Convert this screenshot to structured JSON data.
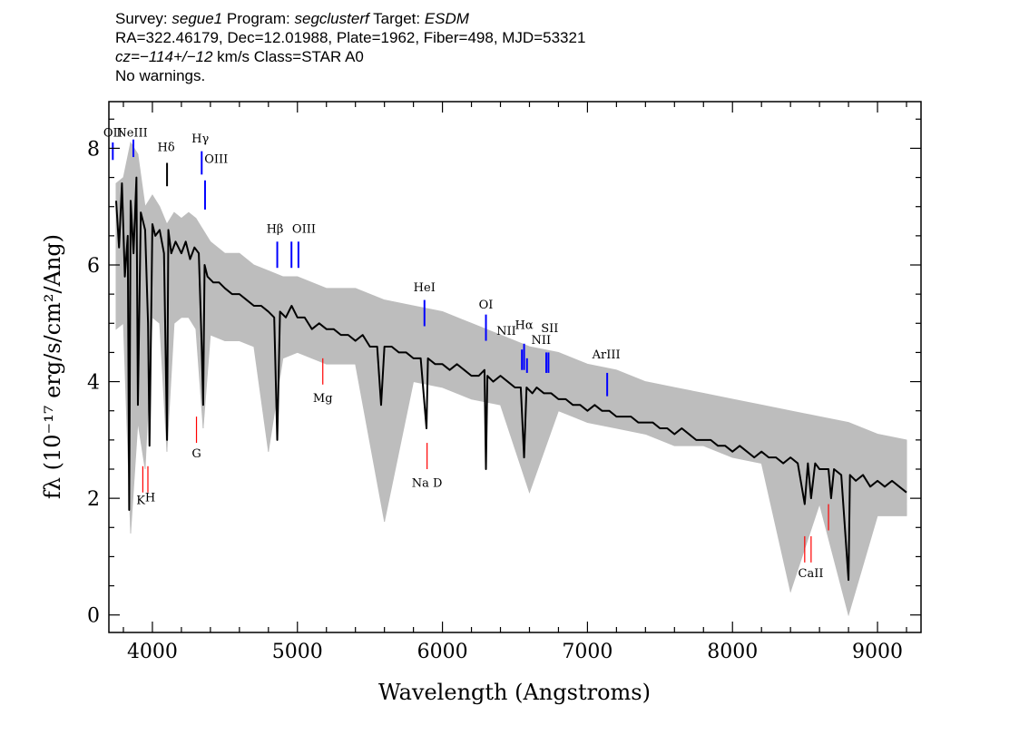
{
  "header": {
    "line1": {
      "survey_label": "Survey: ",
      "survey": "segue1",
      "program_label": " Program: ",
      "program": "segclusterf",
      "target_label": " Target: ",
      "target": "ESDM"
    },
    "line2": "RA=322.46179, Dec=12.01988, Plate=1962, Fiber=498, MJD=53321",
    "line3": {
      "cz": "cz=−114+/−12",
      "rest": " km/s Class=STAR A0"
    },
    "line4": "No warnings."
  },
  "chart_data": {
    "type": "line",
    "title": "",
    "xlabel": "Wavelength (Angstroms)",
    "ylabel": "fλ (10⁻¹⁷ erg/s/cm²/Ang)",
    "xlim": [
      3700,
      9300
    ],
    "ylim": [
      -0.3,
      8.8
    ],
    "x_ticks": [
      4000,
      5000,
      6000,
      7000,
      8000,
      9000
    ],
    "y_ticks": [
      0,
      2,
      4,
      6,
      8
    ],
    "x_minor_step": 200,
    "y_minor_step": 0.5,
    "grid": false,
    "series": [
      {
        "role": "error-band",
        "color": "#bdbdbd",
        "x": [
          3750,
          3800,
          3850,
          3900,
          3950,
          4000,
          4050,
          4100,
          4150,
          4200,
          4250,
          4300,
          4350,
          4400,
          4500,
          4600,
          4700,
          4800,
          4900,
          5000,
          5200,
          5400,
          5600,
          5800,
          6000,
          6200,
          6400,
          6600,
          6800,
          7000,
          7200,
          7400,
          7600,
          7800,
          8000,
          8200,
          8400,
          8600,
          8800,
          9000,
          9200
        ],
        "upper": [
          7.4,
          7.5,
          8.1,
          7.9,
          7.0,
          7.2,
          7.0,
          6.7,
          6.9,
          6.8,
          6.9,
          6.8,
          6.6,
          6.4,
          6.2,
          6.2,
          6.0,
          5.9,
          5.8,
          5.8,
          5.6,
          5.6,
          5.4,
          5.3,
          5.2,
          5.0,
          4.8,
          4.6,
          4.5,
          4.3,
          4.2,
          4.0,
          3.9,
          3.8,
          3.7,
          3.6,
          3.5,
          3.4,
          3.3,
          3.1,
          3.0
        ],
        "lower": [
          4.9,
          5.0,
          1.4,
          3.3,
          2.5,
          5.1,
          5.0,
          2.8,
          5.0,
          5.1,
          5.1,
          4.9,
          3.2,
          4.8,
          4.7,
          4.7,
          4.6,
          2.8,
          4.4,
          4.5,
          4.3,
          4.3,
          1.6,
          4.0,
          3.9,
          3.7,
          3.6,
          2.1,
          3.5,
          3.3,
          3.2,
          3.1,
          2.9,
          2.9,
          2.7,
          2.6,
          0.4,
          1.9,
          0.0,
          1.7,
          1.7
        ]
      },
      {
        "role": "flux",
        "color": "#000000",
        "x": [
          3750,
          3770,
          3790,
          3810,
          3830,
          3840,
          3850,
          3870,
          3890,
          3900,
          3920,
          3950,
          3970,
          3980,
          4000,
          4020,
          4050,
          4080,
          4101,
          4110,
          4130,
          4160,
          4200,
          4230,
          4260,
          4290,
          4320,
          4340,
          4350,
          4360,
          4380,
          4420,
          4460,
          4500,
          4550,
          4600,
          4650,
          4700,
          4750,
          4800,
          4840,
          4861,
          4880,
          4920,
          4960,
          5000,
          5050,
          5100,
          5150,
          5200,
          5250,
          5300,
          5350,
          5400,
          5450,
          5500,
          5550,
          5577,
          5600,
          5650,
          5700,
          5750,
          5800,
          5850,
          5890,
          5900,
          5950,
          6000,
          6050,
          6100,
          6150,
          6200,
          6250,
          6290,
          6300,
          6310,
          6350,
          6400,
          6450,
          6500,
          6540,
          6563,
          6580,
          6620,
          6650,
          6700,
          6750,
          6800,
          6850,
          6900,
          6950,
          7000,
          7050,
          7100,
          7150,
          7200,
          7250,
          7300,
          7350,
          7400,
          7450,
          7500,
          7550,
          7600,
          7650,
          7700,
          7750,
          7800,
          7850,
          7900,
          7950,
          8000,
          8050,
          8100,
          8150,
          8200,
          8250,
          8300,
          8350,
          8400,
          8450,
          8498,
          8520,
          8542,
          8570,
          8600,
          8662,
          8680,
          8700,
          8750,
          8800,
          8810,
          8850,
          8900,
          8950,
          9000,
          9050,
          9100,
          9150,
          9200
        ],
        "y": [
          7.1,
          6.3,
          7.4,
          5.8,
          6.5,
          1.8,
          7.1,
          6.2,
          7.5,
          3.6,
          6.9,
          6.6,
          5.0,
          2.9,
          6.7,
          6.5,
          6.6,
          6.2,
          3.0,
          6.6,
          6.2,
          6.4,
          6.2,
          6.4,
          6.1,
          6.3,
          6.2,
          4.6,
          3.6,
          6.0,
          5.8,
          5.7,
          5.7,
          5.6,
          5.5,
          5.5,
          5.4,
          5.3,
          5.3,
          5.2,
          5.1,
          3.0,
          5.2,
          5.1,
          5.3,
          5.1,
          5.1,
          4.9,
          5.0,
          4.9,
          4.9,
          4.8,
          4.8,
          4.7,
          4.8,
          4.6,
          4.6,
          3.6,
          4.6,
          4.6,
          4.5,
          4.5,
          4.4,
          4.4,
          3.2,
          4.4,
          4.3,
          4.3,
          4.2,
          4.3,
          4.2,
          4.1,
          4.1,
          4.2,
          2.5,
          4.1,
          4.0,
          4.1,
          4.0,
          3.9,
          3.9,
          2.7,
          3.9,
          3.8,
          3.9,
          3.8,
          3.8,
          3.7,
          3.7,
          3.6,
          3.6,
          3.5,
          3.6,
          3.5,
          3.5,
          3.4,
          3.4,
          3.4,
          3.3,
          3.3,
          3.3,
          3.2,
          3.2,
          3.1,
          3.2,
          3.1,
          3.0,
          3.0,
          3.0,
          2.9,
          2.9,
          2.8,
          2.9,
          2.8,
          2.7,
          2.8,
          2.7,
          2.7,
          2.6,
          2.7,
          2.6,
          1.9,
          2.6,
          2.0,
          2.6,
          2.5,
          2.5,
          2.0,
          2.5,
          2.4,
          0.6,
          2.4,
          2.3,
          2.4,
          2.2,
          2.3,
          2.2,
          2.3,
          2.2,
          2.1
        ]
      }
    ],
    "emission_lines": [
      {
        "label": "OII",
        "x": 3727,
        "y_top": 8.1,
        "y_bottom": 7.8,
        "color": "#0000ff"
      },
      {
        "label": "NeIII",
        "x": 3869,
        "y_top": 8.15,
        "y_bottom": 7.85,
        "color": "#0000ff"
      },
      {
        "label": "Hδ",
        "x": 4101,
        "y_top": 7.75,
        "y_bottom": 7.35,
        "color": "#000000"
      },
      {
        "label": "Hγ",
        "x": 4340,
        "y_top": 7.95,
        "y_bottom": 7.55,
        "color": "#0000ff"
      },
      {
        "label": "OIII",
        "x": 4363,
        "y_top": 7.45,
        "y_bottom": 6.95,
        "color": "#0000ff"
      },
      {
        "label": "Hβ",
        "x": 4861,
        "y_top": 6.4,
        "y_bottom": 5.95,
        "color": "#0000ff"
      },
      {
        "label": "OIII",
        "x": 4959,
        "y_top": 6.4,
        "y_bottom": 5.95,
        "color": "#0000ff"
      },
      {
        "label": "OIII",
        "x": 5007,
        "y_top": 6.4,
        "y_bottom": 5.95,
        "color": "#0000ff"
      },
      {
        "label": "HeI",
        "x": 5876,
        "y_top": 5.4,
        "y_bottom": 4.95,
        "color": "#0000ff"
      },
      {
        "label": "OI",
        "x": 6300,
        "y_top": 5.15,
        "y_bottom": 4.7,
        "color": "#0000ff"
      },
      {
        "label": "NII",
        "x": 6548,
        "y_top": 4.55,
        "y_bottom": 4.2,
        "color": "#0000ff"
      },
      {
        "label": "Hα",
        "x": 6563,
        "y_top": 4.65,
        "y_bottom": 4.2,
        "color": "#0000ff"
      },
      {
        "label": "NII",
        "x": 6583,
        "y_top": 4.4,
        "y_bottom": 4.15,
        "color": "#0000ff"
      },
      {
        "label": "SII",
        "x": 6716,
        "y_top": 4.5,
        "y_bottom": 4.15,
        "color": "#0000ff"
      },
      {
        "label": "SII",
        "x": 6731,
        "y_top": 4.5,
        "y_bottom": 4.15,
        "color": "#0000ff"
      },
      {
        "label": "ArIII",
        "x": 7136,
        "y_top": 4.15,
        "y_bottom": 3.75,
        "color": "#0000ff"
      }
    ],
    "absorption_lines": [
      {
        "label": "K",
        "x": 3934,
        "y_top": 2.55,
        "y_bottom": 2.1,
        "color": "#ff0000"
      },
      {
        "label": "H",
        "x": 3969,
        "y_top": 2.55,
        "y_bottom": 2.1,
        "color": "#ff0000"
      },
      {
        "label": "G",
        "x": 4304,
        "y_top": 3.4,
        "y_bottom": 2.95,
        "color": "#ff0000"
      },
      {
        "label": "Mg",
        "x": 5175,
        "y_top": 4.4,
        "y_bottom": 3.95,
        "color": "#ff0000"
      },
      {
        "label": "Na",
        "x": 5894,
        "y_top": 2.95,
        "y_bottom": 2.5,
        "color": "#ff0000"
      },
      {
        "label": "CaII",
        "x": 8498,
        "y_top": 1.35,
        "y_bottom": 0.9,
        "color": "#ff0000"
      },
      {
        "label": "CaII",
        "x": 8542,
        "y_top": 1.35,
        "y_bottom": 0.9,
        "color": "#ff0000"
      },
      {
        "label": "CaII",
        "x": 8662,
        "y_top": 1.9,
        "y_bottom": 1.45,
        "color": "#ff0000"
      }
    ],
    "line_labels": [
      {
        "text": "OII",
        "x": 3727,
        "y": 8.2
      },
      {
        "text": "NeIII",
        "x": 3860,
        "y": 8.2
      },
      {
        "text": "Hδ",
        "x": 4095,
        "y": 7.95
      },
      {
        "text": "Hγ",
        "x": 4330,
        "y": 8.1
      },
      {
        "text": "OIII",
        "x": 4440,
        "y": 7.75
      },
      {
        "text": "Hβ",
        "x": 4845,
        "y": 6.55
      },
      {
        "text": "OIII",
        "x": 5045,
        "y": 6.55
      },
      {
        "text": "HeI",
        "x": 5876,
        "y": 5.55
      },
      {
        "text": "OI",
        "x": 6300,
        "y": 5.25
      },
      {
        "text": "NII",
        "x": 6440,
        "y": 4.8
      },
      {
        "text": "Hα",
        "x": 6563,
        "y": 4.9
      },
      {
        "text": "SII",
        "x": 6740,
        "y": 4.85
      },
      {
        "text": "NII",
        "x": 6680,
        "y": 4.65
      },
      {
        "text": "ArIII",
        "x": 7130,
        "y": 4.4
      },
      {
        "text": "Mg",
        "x": 5175,
        "y": 3.65
      },
      {
        "text": "G",
        "x": 4304,
        "y": 2.7
      },
      {
        "text": "K",
        "x": 3920,
        "y": 1.9
      },
      {
        "text": "H",
        "x": 3985,
        "y": 1.95
      },
      {
        "text": "Na D",
        "x": 5894,
        "y": 2.2
      },
      {
        "text": "CaII",
        "x": 8540,
        "y": 0.65
      }
    ]
  }
}
